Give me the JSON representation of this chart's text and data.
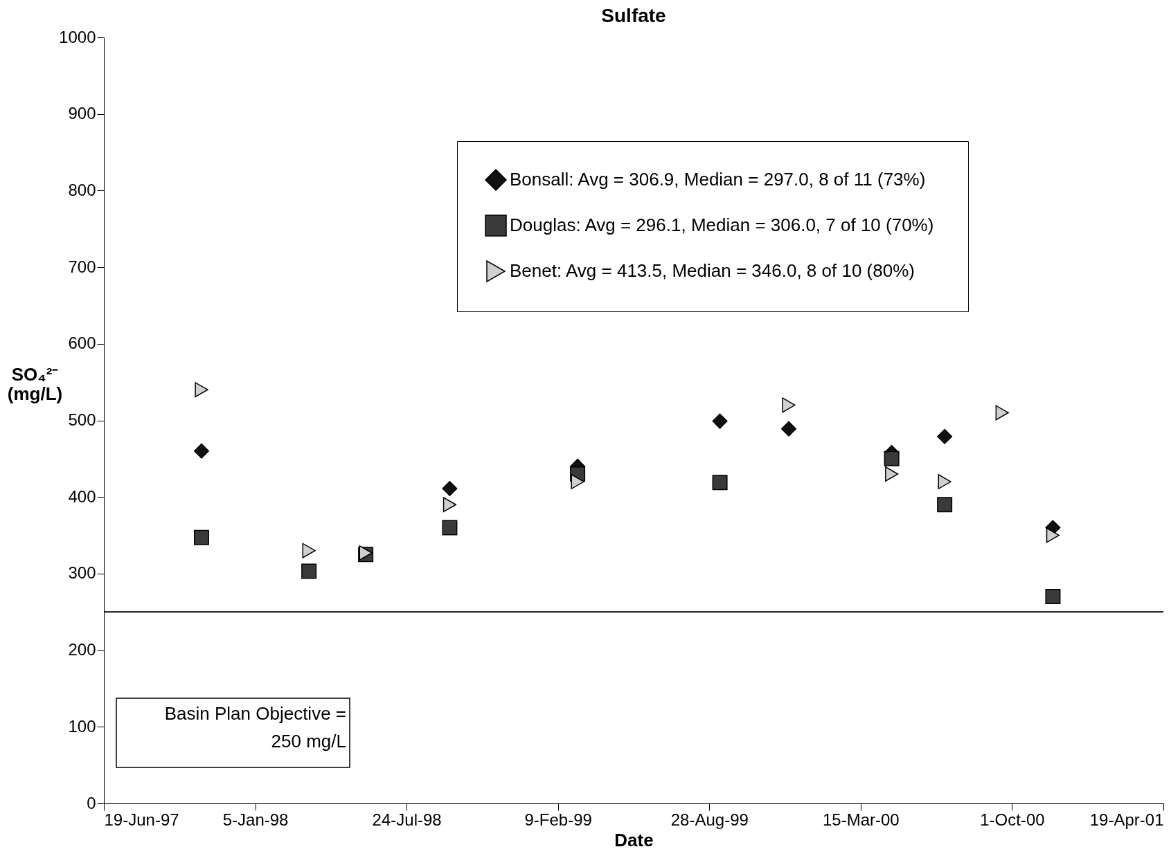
{
  "chart_data": {
    "type": "scatter",
    "title": "Sulfate",
    "xlabel": "Date",
    "ylabel": "SO₄²⁻\n(mg/L)",
    "xlim": [
      "1997-06-19",
      "2001-04-19"
    ],
    "xticks": [
      {
        "value": "1997-06-19",
        "label": "19-Jun-97"
      },
      {
        "value": "1998-01-05",
        "label": "5-Jan-98"
      },
      {
        "value": "1998-07-24",
        "label": "24-Jul-98"
      },
      {
        "value": "1999-02-09",
        "label": "9-Feb-99"
      },
      {
        "value": "1999-08-28",
        "label": "28-Aug-99"
      },
      {
        "value": "2000-03-15",
        "label": "15-Mar-00"
      },
      {
        "value": "2000-10-01",
        "label": "1-Oct-00"
      },
      {
        "value": "2001-04-19",
        "label": "19-Apr-01"
      }
    ],
    "ylim": [
      0,
      1000
    ],
    "yticks": [
      0,
      100,
      200,
      300,
      400,
      500,
      600,
      700,
      800,
      900,
      1000
    ],
    "grid": false,
    "legend": "top right",
    "series": [
      {
        "name": "Bonsall:  Avg = 306.9, Median = 297.0, 8 of 11 (73%)",
        "color": "#111111",
        "marker": "diamond",
        "x": [
          "1997-10-26",
          "1998-09-19",
          "1999-03-07",
          "1999-09-11",
          "1999-12-11",
          "2000-04-25",
          "2000-07-04",
          "2000-11-24"
        ],
        "values": [
          460,
          411,
          440,
          499,
          489,
          458,
          479,
          360
        ]
      },
      {
        "name": "Douglas:  Avg = 296.1, Median = 306.0, 7 of 10 (70%)",
        "color": "#3a3a3a",
        "marker": "square",
        "x": [
          "1997-10-26",
          "1998-03-17",
          "1998-05-31",
          "1998-09-19",
          "1999-03-07",
          "1999-09-11",
          "2000-04-25",
          "2000-07-04",
          "2000-11-24"
        ],
        "values": [
          347,
          303,
          325,
          360,
          430,
          419,
          450,
          390,
          270
        ]
      },
      {
        "name": "Benet:  Avg = 413.5, Median = 346.0, 8 of 10 (80%)",
        "color": "#d0d0d0",
        "marker": "triangle-right",
        "x": [
          "1997-10-26",
          "1998-03-17",
          "1998-05-31",
          "1998-09-19",
          "1999-03-07",
          "1999-12-11",
          "2000-04-25",
          "2000-07-04",
          "2000-09-18",
          "2000-11-24"
        ],
        "values": [
          540,
          330,
          327,
          390,
          420,
          520,
          430,
          420,
          510,
          350
        ]
      }
    ],
    "ref_lines": [
      {
        "axis": "y",
        "value": 250,
        "color": "#000000"
      }
    ],
    "annotations": [
      "Basin Plan Objective =\n250 mg/L"
    ]
  }
}
